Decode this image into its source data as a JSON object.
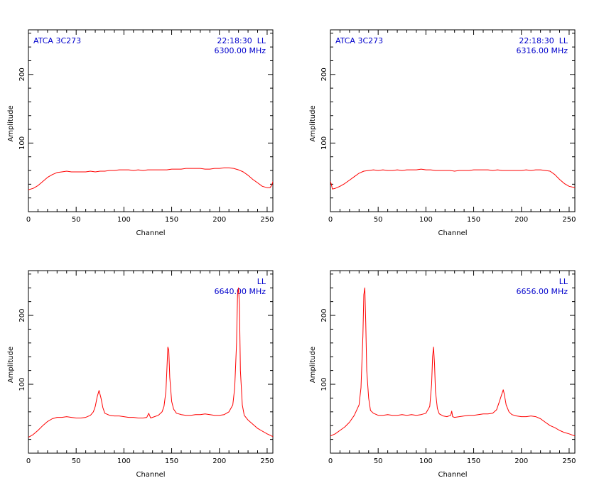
{
  "colors": {
    "frame": "#000000",
    "trace": "#ff0000",
    "annotation": "#0000cc",
    "background": "#ffffff"
  },
  "chart_data": [
    {
      "type": "line",
      "title": "",
      "xlabel": "Channel",
      "ylabel": "Amplitude",
      "xlim": [
        0,
        256
      ],
      "ylim": [
        0,
        265
      ],
      "xticks": [
        0,
        50,
        100,
        150,
        200,
        250
      ],
      "yticks": [
        100,
        200
      ],
      "source": "ATCA 3C273",
      "time": "22:18:30",
      "pol": "LL",
      "freq": "6300.00 MHz",
      "x": [
        0,
        5,
        10,
        15,
        20,
        25,
        30,
        35,
        40,
        45,
        50,
        55,
        60,
        65,
        70,
        75,
        80,
        85,
        90,
        95,
        100,
        105,
        110,
        115,
        120,
        125,
        130,
        135,
        140,
        145,
        150,
        155,
        160,
        165,
        170,
        175,
        180,
        185,
        190,
        195,
        200,
        205,
        210,
        215,
        220,
        225,
        230,
        235,
        240,
        245,
        250,
        253,
        255,
        256
      ],
      "series": [
        {
          "values": [
            32,
            34,
            38,
            44,
            50,
            54,
            57,
            58,
            59,
            58,
            58,
            58,
            58,
            59,
            58,
            59,
            59,
            60,
            60,
            61,
            61,
            61,
            60,
            61,
            60,
            61,
            61,
            61,
            61,
            61,
            62,
            62,
            62,
            63,
            63,
            63,
            63,
            62,
            62,
            63,
            63,
            64,
            64,
            63,
            61,
            58,
            53,
            47,
            42,
            37,
            35,
            35,
            39,
            44
          ]
        }
      ]
    },
    {
      "type": "line",
      "title": "",
      "xlabel": "Channel",
      "ylabel": "Amplitude",
      "xlim": [
        0,
        256
      ],
      "ylim": [
        0,
        265
      ],
      "xticks": [
        0,
        50,
        100,
        150,
        200,
        250
      ],
      "yticks": [
        100,
        200
      ],
      "source": "ATCA 3C273",
      "time": "22:18:30",
      "pol": "LL",
      "freq": "6316.00 MHz",
      "x": [
        0,
        1,
        2,
        5,
        10,
        15,
        20,
        25,
        30,
        35,
        40,
        45,
        50,
        55,
        60,
        65,
        70,
        75,
        80,
        85,
        90,
        95,
        100,
        105,
        110,
        115,
        120,
        125,
        130,
        135,
        140,
        145,
        150,
        155,
        160,
        165,
        170,
        175,
        180,
        185,
        190,
        195,
        200,
        205,
        210,
        215,
        220,
        225,
        230,
        235,
        240,
        245,
        250,
        256
      ],
      "series": [
        {
          "values": [
            44,
            40,
            33,
            34,
            37,
            41,
            46,
            51,
            56,
            59,
            60,
            61,
            60,
            61,
            60,
            60,
            61,
            60,
            61,
            61,
            61,
            62,
            61,
            61,
            60,
            60,
            60,
            60,
            59,
            60,
            60,
            60,
            61,
            61,
            61,
            61,
            60,
            61,
            60,
            60,
            60,
            60,
            60,
            61,
            60,
            61,
            61,
            60,
            59,
            54,
            47,
            41,
            37,
            35
          ]
        }
      ]
    },
    {
      "type": "line",
      "title": "",
      "xlabel": "Channel",
      "ylabel": "Amplitude",
      "xlim": [
        0,
        256
      ],
      "ylim": [
        0,
        265
      ],
      "xticks": [
        0,
        50,
        100,
        150,
        200,
        250
      ],
      "yticks": [
        100,
        200
      ],
      "pol": "LL",
      "freq": "6640.00 MHz",
      "x": [
        0,
        5,
        10,
        15,
        20,
        25,
        30,
        35,
        40,
        45,
        50,
        55,
        60,
        65,
        68,
        70,
        72,
        74,
        76,
        78,
        80,
        85,
        90,
        95,
        100,
        105,
        110,
        115,
        120,
        124,
        126,
        128,
        132,
        136,
        140,
        142,
        144,
        145,
        146,
        147,
        148,
        150,
        152,
        155,
        160,
        165,
        170,
        175,
        180,
        185,
        190,
        195,
        200,
        205,
        210,
        214,
        216,
        218,
        219,
        220,
        221,
        222,
        224,
        226,
        230,
        235,
        240,
        245,
        250,
        256
      ],
      "series": [
        {
          "values": [
            23,
            27,
            33,
            40,
            46,
            50,
            52,
            52,
            53,
            52,
            51,
            51,
            52,
            55,
            60,
            68,
            82,
            91,
            80,
            66,
            58,
            55,
            54,
            54,
            53,
            52,
            52,
            51,
            51,
            52,
            58,
            51,
            53,
            55,
            60,
            68,
            90,
            120,
            154,
            150,
            110,
            75,
            64,
            58,
            56,
            55,
            55,
            56,
            56,
            57,
            56,
            55,
            55,
            56,
            60,
            70,
            95,
            160,
            230,
            240,
            215,
            120,
            70,
            55,
            48,
            42,
            36,
            32,
            28,
            24
          ]
        }
      ]
    },
    {
      "type": "line",
      "title": "",
      "xlabel": "Channel",
      "ylabel": "Amplitude",
      "xlim": [
        0,
        256
      ],
      "ylim": [
        0,
        265
      ],
      "xticks": [
        0,
        50,
        100,
        150,
        200,
        250
      ],
      "yticks": [
        100,
        200
      ],
      "pol": "LL",
      "freq": "6656.00 MHz",
      "x": [
        0,
        5,
        10,
        15,
        20,
        25,
        30,
        32,
        34,
        35,
        36,
        37,
        38,
        40,
        42,
        45,
        50,
        55,
        60,
        65,
        70,
        75,
        80,
        85,
        90,
        95,
        100,
        104,
        106,
        107,
        108,
        109,
        110,
        112,
        114,
        118,
        122,
        126,
        127,
        128,
        130,
        135,
        140,
        145,
        150,
        155,
        160,
        165,
        170,
        174,
        177,
        180,
        181,
        182,
        184,
        187,
        190,
        195,
        200,
        205,
        210,
        215,
        220,
        225,
        230,
        235,
        240,
        245,
        250,
        256
      ],
      "series": [
        {
          "values": [
            25,
            28,
            33,
            38,
            45,
            55,
            70,
            95,
            170,
            230,
            240,
            190,
            120,
            80,
            62,
            58,
            55,
            55,
            56,
            55,
            55,
            56,
            55,
            56,
            55,
            56,
            58,
            68,
            100,
            140,
            154,
            130,
            90,
            65,
            57,
            54,
            53,
            55,
            61,
            53,
            52,
            53,
            54,
            55,
            55,
            56,
            57,
            57,
            58,
            63,
            75,
            88,
            92,
            86,
            70,
            60,
            56,
            54,
            53,
            53,
            54,
            53,
            50,
            45,
            40,
            37,
            33,
            30,
            28,
            25
          ]
        }
      ]
    }
  ]
}
